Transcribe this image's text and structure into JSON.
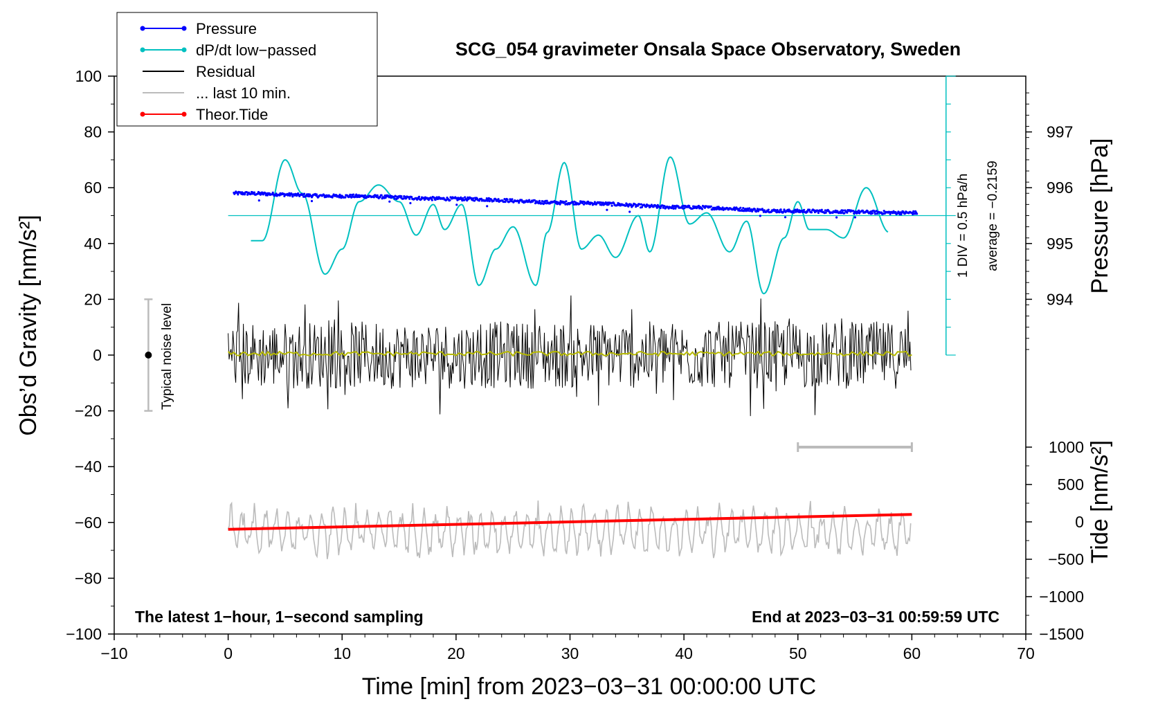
{
  "chart_data": {
    "type": "line",
    "title": "SCG_054 gravimeter Onsala Space Observatory, Sweden",
    "xlabel": "Time [min] from 2023−03−31 00:00:00 UTC",
    "ylabel_left": "Obs’d Gravity [nm/s²]",
    "ylabel_pressure": "Pressure [hPa]",
    "ylabel_tide": "Tide [nm/s²]",
    "xlim": [
      -10,
      70
    ],
    "ylim_gravity": [
      -100,
      100
    ],
    "xticks": [
      "−10",
      "0",
      "10",
      "20",
      "30",
      "40",
      "50",
      "60",
      "70"
    ],
    "xtick_values": [
      -10,
      0,
      10,
      20,
      30,
      40,
      50,
      60,
      70
    ],
    "gravity_ticks": [
      "100",
      "80",
      "60",
      "40",
      "20",
      "0",
      "−20",
      "−40",
      "−60",
      "−80",
      "−100"
    ],
    "gravity_tick_values": [
      100,
      80,
      60,
      40,
      20,
      0,
      -20,
      -40,
      -60,
      -80,
      -100
    ],
    "pressure_ticks": [
      "997",
      "996",
      "995",
      "994"
    ],
    "pressure_tick_values": [
      997,
      996,
      995,
      994
    ],
    "tide_ticks": [
      "1000",
      "500",
      "0",
      "−500",
      "−1000",
      "−1500"
    ],
    "tide_tick_values": [
      1000,
      500,
      0,
      -500,
      -1000,
      -1500
    ],
    "pressure_axis": {
      "value_at_gravity_80": 997,
      "hpa_per_20_gravity": 1
    },
    "tide_axis": {
      "value_at_gravity_minus_100": -1500,
      "value_at_gravity_minus_33": 1000
    },
    "series": [
      {
        "name": "Pressure",
        "color": "#0000ff",
        "units": "hPa",
        "x": [
          0.5,
          10,
          20,
          30,
          40,
          50,
          60.5
        ],
        "values": [
          995.9,
          995.85,
          995.8,
          995.73,
          995.65,
          995.58,
          995.55
        ]
      },
      {
        "name": "dP/dt low−passed",
        "color": "#00c0c0",
        "units": "gravity-axis",
        "x": [
          2,
          3,
          5,
          6.5,
          8.5,
          10,
          11.5,
          13.2,
          15,
          16.5,
          18,
          19,
          20.5,
          22,
          23.5,
          25,
          27,
          28,
          29.5,
          31,
          32.5,
          34,
          36,
          37,
          38.8,
          40.5,
          42,
          44,
          45.5,
          47,
          48.8,
          50,
          51,
          52.5,
          54,
          56,
          58
        ],
        "values": [
          41,
          41,
          70,
          58,
          29,
          38,
          55,
          61,
          55,
          43,
          54,
          45,
          54,
          25,
          38,
          46,
          25,
          44,
          69,
          38,
          43,
          35,
          50,
          37,
          71,
          47,
          51,
          37,
          48,
          22,
          42,
          55,
          45,
          45,
          42,
          60,
          44
        ]
      },
      {
        "name": "Residual",
        "color": "#000000",
        "units": "gravity-axis",
        "range": [
          -22,
          22
        ]
      },
      {
        "name": "Residual smoothed",
        "color": "#b5b800",
        "units": "gravity-axis",
        "level": 0.5
      },
      {
        "name": "... last 10 min.",
        "color": "#bbbbbb",
        "units": "gravity-axis",
        "baseline": -63,
        "range": [
          -80,
          -45
        ]
      },
      {
        "name": "Theor.Tide",
        "color": "#ff0000",
        "units": "nm/s²",
        "x": [
          0,
          60
        ],
        "values": [
          -100,
          100
        ]
      }
    ],
    "dpdt_scale": {
      "div_label": "1 DIV = 0.5 hPa/h",
      "average_label": "average = −0.2159",
      "axis_x": 63,
      "top": 100,
      "bottom": 0,
      "baseline": 50,
      "baseline_x": [
        0,
        63
      ]
    },
    "noise_bar": {
      "label": "Typical noise level",
      "x": -7,
      "center": 0,
      "half_range": 20
    },
    "window_bar": {
      "x": [
        50,
        60
      ],
      "y": -33
    },
    "legend": [
      {
        "label": "Pressure",
        "color": "#0000ff",
        "marker": true
      },
      {
        "label": "dP/dt low−passed",
        "color": "#00c0c0",
        "marker": true
      },
      {
        "label": "Residual",
        "color": "#000000",
        "marker": false
      },
      {
        "label": "... last 10 min.",
        "color": "#bbbbbb",
        "marker": false
      },
      {
        "label": "Theor.Tide",
        "color": "#ff0000",
        "marker": true
      }
    ],
    "footer_left": "The latest 1−hour, 1−second sampling",
    "footer_right": "End at 2023−03−31 00:59:59 UTC"
  }
}
